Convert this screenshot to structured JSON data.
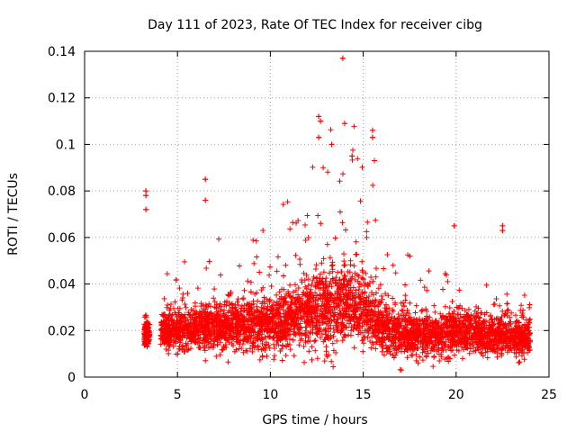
{
  "chart_data": {
    "type": "scatter",
    "title": "Day 111 of 2023, Rate Of TEC Index for receiver cibg",
    "xlabel": "GPS time / hours",
    "ylabel": "ROTI / TECUs",
    "xlim": [
      0,
      25
    ],
    "ylim": [
      0,
      0.14
    ],
    "xticks": [
      0,
      5,
      10,
      15,
      20,
      25
    ],
    "xtick_labels": [
      "0",
      "5",
      "10",
      "15",
      "20",
      "25"
    ],
    "yticks": [
      0,
      0.02,
      0.04,
      0.06,
      0.08,
      0.1,
      0.12,
      0.14
    ],
    "ytick_labels": [
      "0",
      "0.02",
      "0.04",
      "0.06",
      "0.08",
      "0.1",
      "0.12",
      "0.14"
    ],
    "grid": true,
    "legend": "none",
    "marker": "+",
    "series_color": "#ff0000",
    "x_coverage": [
      3.2,
      24.0
    ],
    "profile": [
      {
        "x": 3.3,
        "median": 0.018,
        "spread": 0.004,
        "peak": 0.027
      },
      {
        "x": 4.5,
        "median": 0.02,
        "spread": 0.006,
        "peak": 0.046
      },
      {
        "x": 6.0,
        "median": 0.021,
        "spread": 0.007,
        "peak": 0.052
      },
      {
        "x": 8.0,
        "median": 0.022,
        "spread": 0.008,
        "peak": 0.064
      },
      {
        "x": 10.0,
        "median": 0.023,
        "spread": 0.009,
        "peak": 0.071
      },
      {
        "x": 11.5,
        "median": 0.026,
        "spread": 0.01,
        "peak": 0.078
      },
      {
        "x": 13.0,
        "median": 0.03,
        "spread": 0.013,
        "peak": 0.112
      },
      {
        "x": 14.0,
        "median": 0.031,
        "spread": 0.013,
        "peak": 0.137
      },
      {
        "x": 15.0,
        "median": 0.028,
        "spread": 0.011,
        "peak": 0.106
      },
      {
        "x": 16.0,
        "median": 0.021,
        "spread": 0.008,
        "peak": 0.06
      },
      {
        "x": 17.5,
        "median": 0.018,
        "spread": 0.007,
        "peak": 0.052
      },
      {
        "x": 19.0,
        "median": 0.018,
        "spread": 0.007,
        "peak": 0.05
      },
      {
        "x": 20.5,
        "median": 0.019,
        "spread": 0.007,
        "peak": 0.047
      },
      {
        "x": 22.0,
        "median": 0.018,
        "spread": 0.006,
        "peak": 0.043
      },
      {
        "x": 24.0,
        "median": 0.017,
        "spread": 0.006,
        "peak": 0.048
      }
    ],
    "notable_points": [
      {
        "x": 3.3,
        "y": 0.08
      },
      {
        "x": 3.3,
        "y": 0.078
      },
      {
        "x": 3.3,
        "y": 0.072
      },
      {
        "x": 6.5,
        "y": 0.085
      },
      {
        "x": 6.5,
        "y": 0.076
      },
      {
        "x": 12.6,
        "y": 0.112
      },
      {
        "x": 12.7,
        "y": 0.11
      },
      {
        "x": 12.6,
        "y": 0.103
      },
      {
        "x": 13.3,
        "y": 0.1
      },
      {
        "x": 13.9,
        "y": 0.137
      },
      {
        "x": 14.0,
        "y": 0.109
      },
      {
        "x": 14.4,
        "y": 0.095
      },
      {
        "x": 15.5,
        "y": 0.106
      },
      {
        "x": 15.5,
        "y": 0.103
      },
      {
        "x": 15.6,
        "y": 0.093
      },
      {
        "x": 19.9,
        "y": 0.065
      },
      {
        "x": 22.5,
        "y": 0.065
      },
      {
        "x": 22.5,
        "y": 0.063
      }
    ]
  }
}
